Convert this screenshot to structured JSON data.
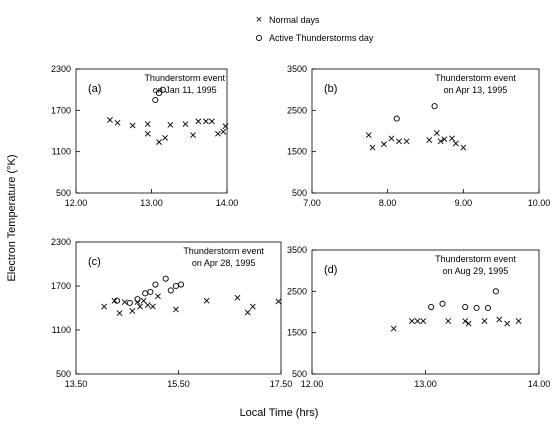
{
  "legend": [
    {
      "marker": "x",
      "label": "Normal days"
    },
    {
      "marker": "o",
      "label": "Active Thunderstorms day"
    }
  ],
  "figure": {
    "ylabel": "Electron Temperature (°K)",
    "xlabel": "Local Time (hrs)"
  },
  "chart_data": [
    {
      "type": "scatter",
      "panel_label": "(a)",
      "annotation": [
        "Thunderstorm event",
        "on Jan 11, 1995"
      ],
      "xlim": [
        12.0,
        14.0
      ],
      "ylim": [
        500,
        2300
      ],
      "xticks": [
        "12.00",
        "13.00",
        "14.00"
      ],
      "yticks": [
        "500",
        "1100",
        "1700",
        "2300"
      ],
      "xtick_values": [
        12.0,
        13.0,
        14.0
      ],
      "ytick_values": [
        500,
        1100,
        1700,
        2300
      ],
      "series": [
        {
          "name": "Normal days",
          "marker": "x",
          "points": [
            [
              12.45,
              1560
            ],
            [
              12.55,
              1520
            ],
            [
              12.75,
              1480
            ],
            [
              12.95,
              1500
            ],
            [
              12.95,
              1360
            ],
            [
              13.1,
              1240
            ],
            [
              13.18,
              1300
            ],
            [
              13.25,
              1490
            ],
            [
              13.45,
              1500
            ],
            [
              13.55,
              1340
            ],
            [
              13.62,
              1540
            ],
            [
              13.72,
              1540
            ],
            [
              13.8,
              1540
            ],
            [
              13.88,
              1360
            ],
            [
              13.95,
              1390
            ],
            [
              13.98,
              1470
            ]
          ]
        },
        {
          "name": "Active Thunderstorms day",
          "marker": "o",
          "points": [
            [
              13.05,
              1850
            ],
            [
              13.1,
              1950
            ],
            [
              13.15,
              2000
            ]
          ]
        }
      ]
    },
    {
      "type": "scatter",
      "panel_label": "(b)",
      "annotation": [
        "Thunderstorm event",
        "on Apr 13, 1995"
      ],
      "xlim": [
        7.0,
        10.0
      ],
      "ylim": [
        500,
        3500
      ],
      "xticks": [
        "7.00",
        "8.00",
        "9.00",
        "10.00"
      ],
      "yticks": [
        "500",
        "1500",
        "2500",
        "3500"
      ],
      "xtick_values": [
        7.0,
        8.0,
        9.0,
        10.0
      ],
      "ytick_values": [
        500,
        1500,
        2500,
        3500
      ],
      "series": [
        {
          "name": "Normal days",
          "marker": "x",
          "points": [
            [
              7.75,
              1900
            ],
            [
              7.8,
              1600
            ],
            [
              7.95,
              1680
            ],
            [
              8.05,
              1820
            ],
            [
              8.15,
              1750
            ],
            [
              8.25,
              1750
            ],
            [
              8.55,
              1780
            ],
            [
              8.65,
              1950
            ],
            [
              8.7,
              1750
            ],
            [
              8.75,
              1800
            ],
            [
              8.85,
              1820
            ],
            [
              8.9,
              1700
            ],
            [
              9.0,
              1600
            ]
          ]
        },
        {
          "name": "Active Thunderstorms day",
          "marker": "o",
          "points": [
            [
              8.12,
              2300
            ],
            [
              8.62,
              2600
            ]
          ]
        }
      ]
    },
    {
      "type": "scatter",
      "panel_label": "(c)",
      "annotation": [
        "Thunderstorm event",
        "on Apr 28, 1995"
      ],
      "xlim": [
        13.5,
        17.5
      ],
      "ylim": [
        500,
        2300
      ],
      "xticks": [
        "13.50",
        "15.50",
        "17.50"
      ],
      "yticks": [
        "500",
        "1100",
        "1700",
        "2300"
      ],
      "xtick_values": [
        13.5,
        15.5,
        17.5
      ],
      "ytick_values": [
        500,
        1100,
        1700,
        2300
      ],
      "series": [
        {
          "name": "Normal days",
          "marker": "x",
          "points": [
            [
              14.05,
              1420
            ],
            [
              14.25,
              1500
            ],
            [
              14.35,
              1330
            ],
            [
              14.45,
              1480
            ],
            [
              14.6,
              1360
            ],
            [
              14.7,
              1480
            ],
            [
              14.75,
              1420
            ],
            [
              14.82,
              1500
            ],
            [
              14.9,
              1440
            ],
            [
              15.0,
              1420
            ],
            [
              15.1,
              1560
            ],
            [
              15.45,
              1380
            ],
            [
              16.05,
              1500
            ],
            [
              16.65,
              1540
            ],
            [
              16.85,
              1340
            ],
            [
              16.95,
              1420
            ],
            [
              17.45,
              1490
            ]
          ]
        },
        {
          "name": "Active Thunderstorms day",
          "marker": "o",
          "points": [
            [
              14.3,
              1500
            ],
            [
              14.55,
              1470
            ],
            [
              14.7,
              1520
            ],
            [
              14.85,
              1600
            ],
            [
              14.95,
              1620
            ],
            [
              15.05,
              1720
            ],
            [
              15.25,
              1800
            ],
            [
              15.35,
              1640
            ],
            [
              15.45,
              1700
            ],
            [
              15.55,
              1720
            ]
          ]
        }
      ]
    },
    {
      "type": "scatter",
      "panel_label": "(d)",
      "annotation": [
        "Thunderstorm event",
        "on Aug 29, 1995"
      ],
      "xlim": [
        12.0,
        14.0
      ],
      "ylim": [
        500,
        3500
      ],
      "xticks": [
        "12.00",
        "13.00",
        "14.00"
      ],
      "yticks": [
        "500",
        "1500",
        "2500",
        "3500"
      ],
      "xtick_values": [
        12.0,
        13.0,
        14.0
      ],
      "ytick_values": [
        500,
        1500,
        2500,
        3500
      ],
      "series": [
        {
          "name": "Normal days",
          "marker": "x",
          "points": [
            [
              12.72,
              1600
            ],
            [
              12.88,
              1780
            ],
            [
              12.93,
              1780
            ],
            [
              12.98,
              1780
            ],
            [
              13.2,
              1780
            ],
            [
              13.35,
              1780
            ],
            [
              13.38,
              1720
            ],
            [
              13.52,
              1780
            ],
            [
              13.65,
              1820
            ],
            [
              13.72,
              1720
            ],
            [
              13.82,
              1780
            ]
          ]
        },
        {
          "name": "Active Thunderstorms day",
          "marker": "o",
          "points": [
            [
              13.05,
              2120
            ],
            [
              13.15,
              2200
            ],
            [
              13.35,
              2120
            ],
            [
              13.45,
              2100
            ],
            [
              13.55,
              2100
            ],
            [
              13.62,
              2500
            ]
          ]
        }
      ]
    }
  ]
}
